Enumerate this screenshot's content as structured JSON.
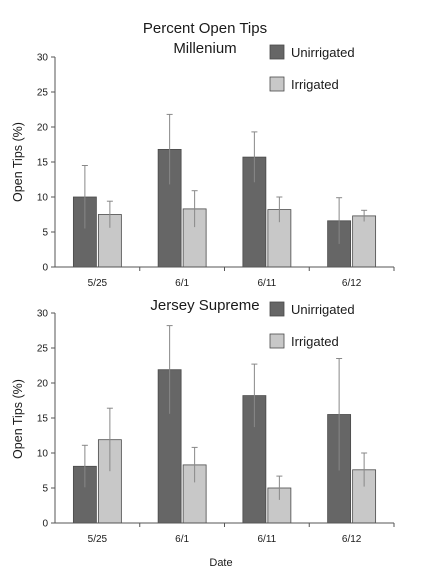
{
  "chart_data": [
    {
      "type": "bar",
      "title": "Percent Open Tips",
      "subtitle": "Millenium",
      "ylabel": "Open Tips (%)",
      "xlabel": "",
      "categories": [
        "5/25",
        "6/1",
        "6/11",
        "6/12"
      ],
      "ylim": [
        0,
        30
      ],
      "yticks": [
        0,
        5,
        10,
        15,
        20,
        25,
        30
      ],
      "legend_position": "top-right",
      "grid": false,
      "series": [
        {
          "name": "Unirrigated",
          "color": "#666666",
          "values": [
            10.0,
            16.8,
            15.7,
            6.6
          ],
          "errors": [
            4.5,
            5.0,
            3.6,
            3.3
          ]
        },
        {
          "name": "Irrigated",
          "color": "#c8c8c8",
          "values": [
            7.5,
            8.3,
            8.2,
            7.3
          ],
          "errors": [
            1.9,
            2.6,
            1.8,
            0.8
          ]
        }
      ]
    },
    {
      "type": "bar",
      "title": "Jersey Supreme",
      "subtitle": "",
      "ylabel": "Open Tips (%)",
      "xlabel": "Date",
      "categories": [
        "5/25",
        "6/1",
        "6/11",
        "6/12"
      ],
      "ylim": [
        0,
        30
      ],
      "yticks": [
        0,
        5,
        10,
        15,
        20,
        25,
        30
      ],
      "legend_position": "top-right",
      "grid": false,
      "series": [
        {
          "name": "Unirrigated",
          "color": "#666666",
          "values": [
            8.1,
            21.9,
            18.2,
            15.5
          ],
          "errors": [
            3.0,
            6.3,
            4.5,
            8.0
          ]
        },
        {
          "name": "Irrigated",
          "color": "#c8c8c8",
          "values": [
            11.9,
            8.3,
            5.0,
            7.6
          ],
          "errors": [
            4.5,
            2.5,
            1.7,
            2.4
          ]
        }
      ]
    }
  ]
}
